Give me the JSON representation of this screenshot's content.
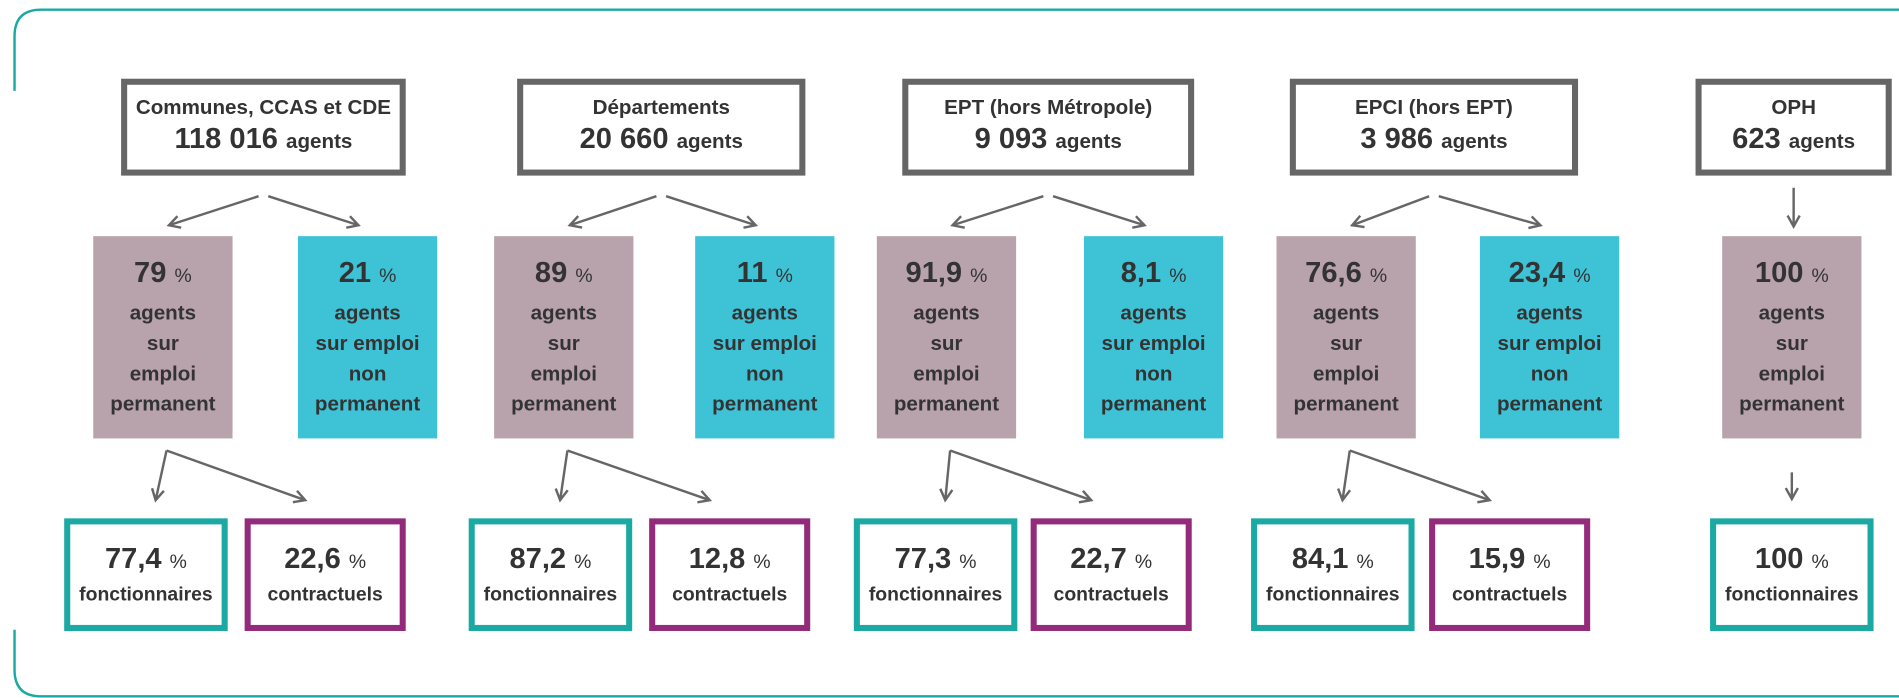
{
  "groups": [
    {
      "name": "Communes, CCAS et CDE",
      "count": "118 016",
      "permanent": "79",
      "non_permanent": "21",
      "fonctionnaires": "77,4",
      "contractuels": "22,6"
    },
    {
      "name": "Départements",
      "count": "20 660",
      "permanent": "89",
      "non_permanent": "11",
      "fonctionnaires": "87,2",
      "contractuels": "12,8"
    },
    {
      "name": "EPT (hors Métropole)",
      "count": "9 093",
      "permanent": "91,9",
      "non_permanent": "8,1",
      "fonctionnaires": "77,3",
      "contractuels": "22,7"
    },
    {
      "name": "EPCI (hors EPT)",
      "count": "3 986",
      "permanent": "76,6",
      "non_permanent": "23,4",
      "fonctionnaires": "84,1",
      "contractuels": "15,9"
    },
    {
      "name": "OPH",
      "count": "623",
      "permanent": "100",
      "fonctionnaires": "100"
    }
  ],
  "agents_unit": "agents",
  "percent_sign": "%",
  "permanent_label": [
    "agents",
    "sur",
    "emploi",
    "permanent"
  ],
  "non_permanent_label": [
    "agents",
    "sur emploi",
    "non",
    "permanent"
  ],
  "fonctionnaires_label": "fonctionnaires",
  "contractuels_label": "contractuels"
}
